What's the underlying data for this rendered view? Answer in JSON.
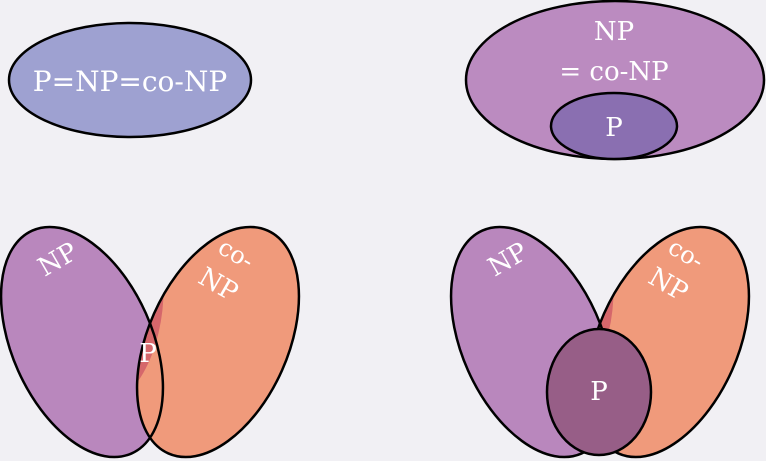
{
  "colors": {
    "background": "#f1f0f4",
    "all_equal": "#9ea1d1",
    "np": "#b987bd",
    "conp": "#f09a7b",
    "intersection": "#d5676b",
    "p_inner": "#975e87",
    "p_top": "#8a6fb1",
    "np_top": "#bb8bc0"
  },
  "diagrams": {
    "equal": {
      "label": "P=NP=co-NP"
    },
    "np_eq_conp": {
      "label_line1": "NP",
      "label_line2": "= co-NP",
      "p_label": "P"
    },
    "p_eq_intersection": {
      "np_label": "NP",
      "conp_label_line1": "co-",
      "conp_label_line2": "NP",
      "p_label": "P"
    },
    "p_strict": {
      "np_label": "NP",
      "conp_label_line1": "co-",
      "conp_label_line2": "NP",
      "p_label": "P"
    }
  }
}
